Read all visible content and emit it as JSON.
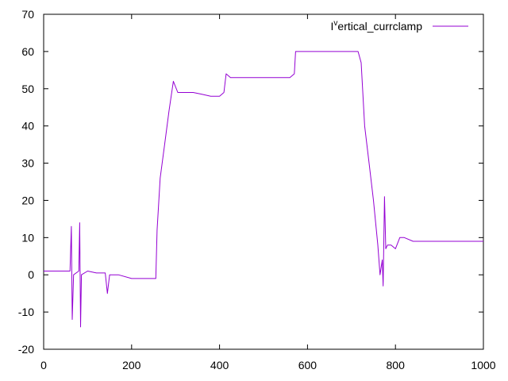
{
  "chart_data": {
    "type": "line",
    "title": "",
    "xlabel": "",
    "ylabel": "",
    "xlim": [
      0,
      1000
    ],
    "ylim": [
      -20,
      70
    ],
    "x_ticks": [
      0,
      200,
      400,
      600,
      800,
      1000
    ],
    "x_tick_labels": [
      "0",
      "200",
      "400",
      "600",
      "800",
      "1000"
    ],
    "y_ticks": [
      -20,
      -10,
      0,
      10,
      20,
      30,
      40,
      50,
      60,
      70
    ],
    "y_tick_labels": [
      "-20",
      "-10",
      "0",
      "10",
      "20",
      "30",
      "40",
      "50",
      "60",
      "70"
    ],
    "grid": false,
    "legend_position": "top-right",
    "series": [
      {
        "name": "I",
        "name_superscript": "v",
        "name_suffix": "ertical_currclamp",
        "color": "#9400d3",
        "x": [
          0,
          20,
          40,
          60,
          63,
          65,
          68,
          80,
          82,
          84,
          86,
          100,
          120,
          140,
          145,
          150,
          170,
          200,
          230,
          255,
          258,
          265,
          275,
          285,
          295,
          305,
          320,
          340,
          360,
          380,
          400,
          410,
          415,
          425,
          440,
          460,
          480,
          500,
          520,
          540,
          560,
          570,
          573,
          580,
          600,
          620,
          640,
          660,
          680,
          700,
          715,
          722,
          730,
          740,
          750,
          760,
          765,
          770,
          772,
          775,
          778,
          782,
          790,
          800,
          810,
          820,
          840,
          860,
          880,
          900,
          920,
          940,
          960,
          980,
          1000
        ],
        "values": [
          1,
          1,
          1,
          1,
          13,
          -12,
          0,
          1,
          14,
          -14,
          0,
          1,
          0.5,
          0.5,
          -5,
          0,
          0,
          -1,
          -1,
          -1,
          12,
          26,
          35,
          44,
          52,
          49,
          49,
          49,
          48.5,
          48,
          48,
          49,
          54,
          53,
          53,
          53,
          53,
          53,
          53,
          53,
          53,
          54,
          60,
          60,
          60,
          60,
          60,
          60,
          60,
          60,
          60,
          57,
          40,
          30,
          20,
          8,
          0,
          4,
          -3,
          21,
          7,
          8,
          8,
          7,
          10,
          10,
          9,
          9,
          9,
          9,
          9,
          9,
          9,
          9,
          9
        ]
      }
    ]
  }
}
